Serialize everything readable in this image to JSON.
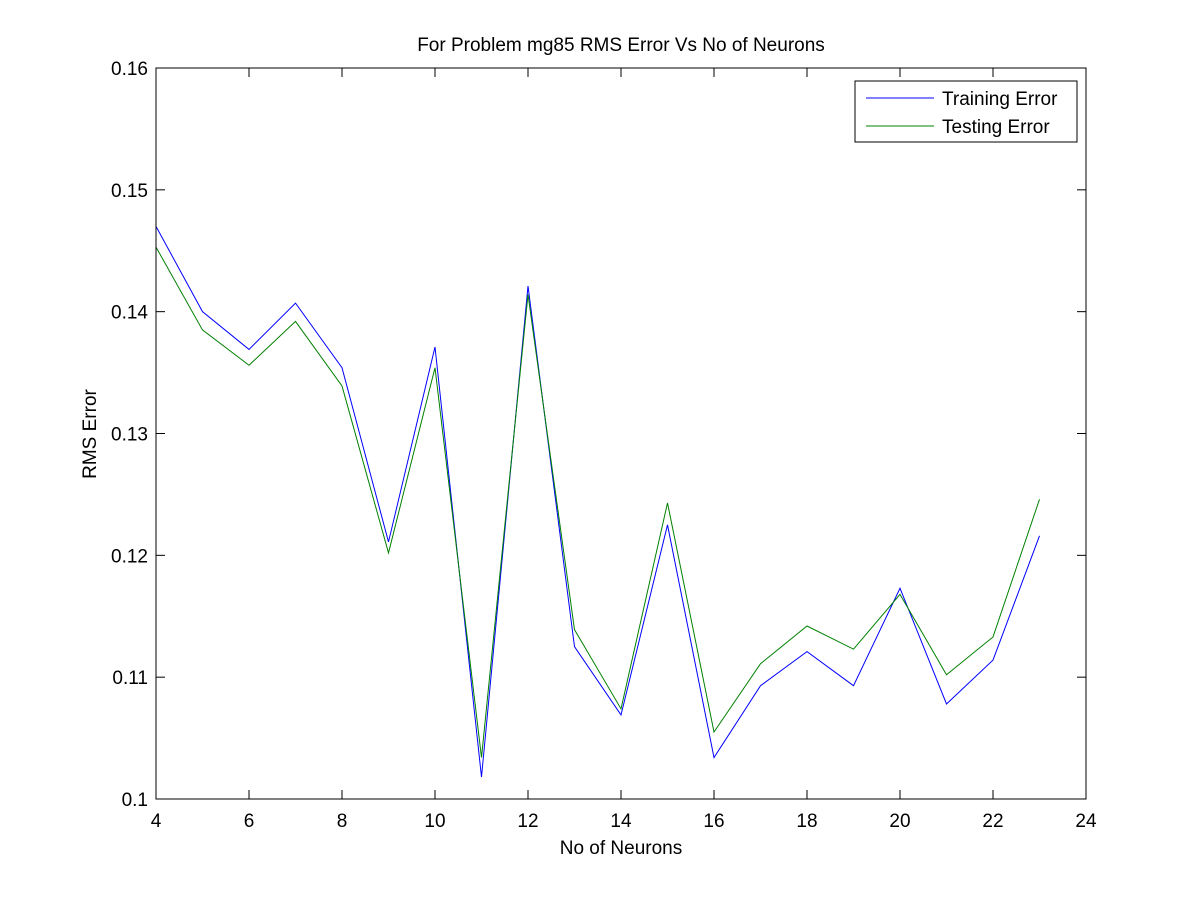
{
  "chart_data": {
    "type": "line",
    "title": "For Problem mg85 RMS Error Vs No of Neurons",
    "xlabel": "No of Neurons",
    "ylabel": "RMS Error",
    "xlim": [
      4,
      24
    ],
    "ylim": [
      0.1,
      0.16
    ],
    "xticks": [
      4,
      6,
      8,
      10,
      12,
      14,
      16,
      18,
      20,
      22,
      24
    ],
    "yticks": [
      0.1,
      0.11,
      0.12,
      0.13,
      0.14,
      0.15,
      0.16
    ],
    "ytick_labels": [
      "0.1",
      "0.11",
      "0.12",
      "0.13",
      "0.14",
      "0.15",
      "0.16"
    ],
    "grid": false,
    "legend_position": "top-right",
    "x": [
      4,
      5,
      6,
      7,
      8,
      9,
      10,
      11,
      12,
      13,
      14,
      15,
      16,
      17,
      18,
      19,
      20,
      21,
      22,
      23
    ],
    "series": [
      {
        "name": "Training Error",
        "color": "#0000ff",
        "values": [
          0.147,
          0.14,
          0.1369,
          0.1407,
          0.1354,
          0.1211,
          0.1371,
          0.1018,
          0.1421,
          0.1125,
          0.1069,
          0.1225,
          0.1034,
          0.1093,
          0.1121,
          0.1093,
          0.1173,
          0.1078,
          0.1114,
          0.1216
        ]
      },
      {
        "name": "Testing Error",
        "color": "#008000",
        "values": [
          0.1453,
          0.1385,
          0.1356,
          0.1392,
          0.1339,
          0.1202,
          0.1354,
          0.1034,
          0.1414,
          0.1139,
          0.1074,
          0.1243,
          0.1055,
          0.1111,
          0.1142,
          0.1123,
          0.1168,
          0.1102,
          0.1133,
          0.1246
        ]
      }
    ]
  }
}
